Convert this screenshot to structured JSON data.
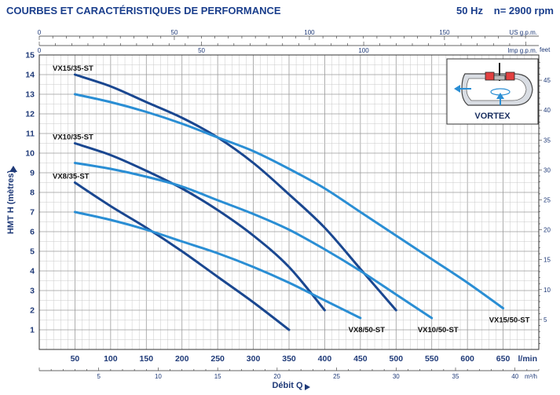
{
  "header": {
    "title": "COURBES ET CARACTÉRISTIQUES DE PERFORMANCE",
    "frequency": "50 Hz",
    "speed": "n= 2900 rpm"
  },
  "inset": {
    "label": "VORTEX"
  },
  "chart_data": {
    "type": "line",
    "title": "",
    "ylabel": "HMT H (mètres)",
    "xlabel": "Débit Q",
    "x_unit": "l/min",
    "x_unit_m3": "m³/h",
    "y_right_unit": "feet",
    "us_unit": "US g.p.m.",
    "imp_unit": "Imp g.p.m.",
    "xlim": [
      0,
      700
    ],
    "ylim": [
      0,
      15
    ],
    "x_ticks": [
      50,
      100,
      150,
      200,
      250,
      300,
      350,
      400,
      450,
      500,
      550,
      600,
      650
    ],
    "y_ticks": [
      1,
      2,
      3,
      4,
      5,
      6,
      7,
      8,
      9,
      10,
      11,
      12,
      13,
      14,
      15
    ],
    "m3h_ticks": [
      5,
      10,
      15,
      20,
      25,
      30,
      35,
      40
    ],
    "us_ticks": [
      0,
      50,
      100,
      150
    ],
    "imp_ticks": [
      0,
      50,
      100
    ],
    "feet_ticks": [
      5,
      10,
      15,
      20,
      25,
      30,
      35,
      40,
      45
    ],
    "grid": true,
    "series": [
      {
        "name": "VX8/35-ST",
        "color": "#1a4790",
        "label_pos": "start",
        "x": [
          50,
          100,
          150,
          200,
          250,
          300,
          350
        ],
        "y": [
          8.5,
          7.3,
          6.2,
          5.0,
          3.7,
          2.4,
          1.0
        ]
      },
      {
        "name": "VX10/35-ST",
        "color": "#1a4790",
        "label_pos": "start",
        "x": [
          50,
          100,
          150,
          200,
          250,
          300,
          350,
          400
        ],
        "y": [
          10.5,
          9.9,
          9.1,
          8.2,
          7.1,
          5.8,
          4.2,
          2.0
        ]
      },
      {
        "name": "VX15/35-ST",
        "color": "#1a4790",
        "label_pos": "start",
        "x": [
          50,
          100,
          150,
          200,
          250,
          300,
          350,
          400,
          450,
          500
        ],
        "y": [
          14.0,
          13.4,
          12.6,
          11.8,
          10.8,
          9.5,
          7.9,
          6.2,
          4.1,
          2.0
        ]
      },
      {
        "name": "VX8/50-ST",
        "color": "#2a8ed4",
        "label_pos": "end",
        "x": [
          50,
          100,
          150,
          200,
          250,
          300,
          350,
          400,
          450
        ],
        "y": [
          7.0,
          6.6,
          6.1,
          5.5,
          4.9,
          4.2,
          3.4,
          2.5,
          1.6
        ]
      },
      {
        "name": "VX10/50-ST",
        "color": "#2a8ed4",
        "label_pos": "end",
        "x": [
          50,
          100,
          150,
          200,
          250,
          300,
          350,
          400,
          450,
          500,
          550
        ],
        "y": [
          9.5,
          9.2,
          8.8,
          8.3,
          7.6,
          6.9,
          6.1,
          5.1,
          4.0,
          2.8,
          1.6
        ]
      },
      {
        "name": "VX15/50-ST",
        "color": "#2a8ed4",
        "label_pos": "end",
        "x": [
          50,
          100,
          150,
          200,
          250,
          300,
          350,
          400,
          450,
          500,
          550,
          600,
          650
        ],
        "y": [
          13.0,
          12.6,
          12.1,
          11.5,
          10.8,
          10.1,
          9.2,
          8.2,
          7.0,
          5.8,
          4.6,
          3.4,
          2.1
        ]
      }
    ]
  }
}
